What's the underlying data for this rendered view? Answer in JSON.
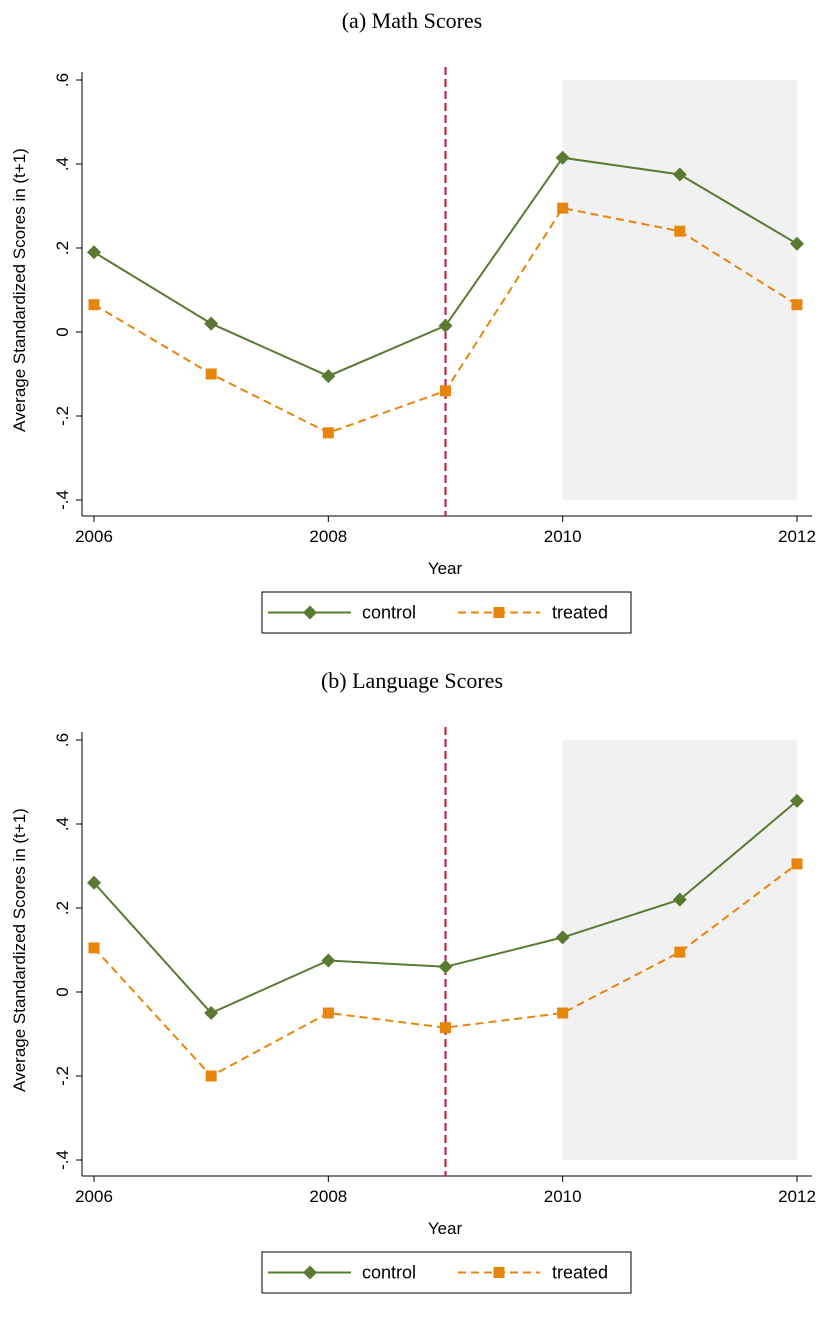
{
  "chart_data": [
    {
      "type": "line",
      "title": "(a) Math Scores",
      "xlabel": "Year",
      "ylabel": "Average Standardized Scores in (t+1)",
      "xlim": [
        2006,
        2012
      ],
      "ylim": [
        -0.4,
        0.6
      ],
      "x_ticks": [
        2006,
        2008,
        2010,
        2012
      ],
      "x_tick_labels": [
        "2006",
        "2008",
        "2010",
        "2012"
      ],
      "y_ticks": [
        -0.4,
        -0.2,
        0,
        0.2,
        0.4,
        0.6
      ],
      "y_tick_labels": [
        "-.4",
        "-.2",
        "0",
        ".2",
        ".4",
        ".6"
      ],
      "x": [
        2006,
        2007,
        2008,
        2009,
        2010,
        2011,
        2012
      ],
      "series": [
        {
          "name": "control",
          "values": [
            0.19,
            0.02,
            -0.105,
            0.015,
            0.415,
            0.375,
            0.21
          ],
          "color": "#5a7a32",
          "marker": "diamond",
          "line": "solid"
        },
        {
          "name": "treated",
          "values": [
            0.065,
            -0.1,
            -0.24,
            -0.14,
            0.295,
            0.24,
            0.065
          ],
          "color": "#e8850c",
          "marker": "square",
          "line": "dashed"
        }
      ],
      "vline": {
        "x": 2009,
        "color": "#cc1133",
        "style": "dashed"
      },
      "shaded_region": {
        "x": [
          2010,
          2012
        ],
        "y": [
          -0.4,
          0.6
        ],
        "color": "#f1f1f1"
      },
      "legend": "bottom",
      "grid": false
    },
    {
      "type": "line",
      "title": "(b) Language Scores",
      "xlabel": "Year",
      "ylabel": "Average Standardized Scores in (t+1)",
      "xlim": [
        2006,
        2012
      ],
      "ylim": [
        -0.4,
        0.6
      ],
      "x_ticks": [
        2006,
        2008,
        2010,
        2012
      ],
      "x_tick_labels": [
        "2006",
        "2008",
        "2010",
        "2012"
      ],
      "y_ticks": [
        -0.4,
        -0.2,
        0,
        0.2,
        0.4,
        0.6
      ],
      "y_tick_labels": [
        "-.4",
        "-.2",
        "0",
        ".2",
        ".4",
        ".6"
      ],
      "x": [
        2006,
        2007,
        2008,
        2009,
        2010,
        2011,
        2012
      ],
      "series": [
        {
          "name": "control",
          "values": [
            0.26,
            -0.05,
            0.075,
            0.06,
            0.13,
            0.22,
            0.455
          ],
          "color": "#5a7a32",
          "marker": "diamond",
          "line": "solid"
        },
        {
          "name": "treated",
          "values": [
            0.105,
            -0.2,
            -0.05,
            -0.085,
            -0.05,
            0.095,
            0.305
          ],
          "color": "#e8850c",
          "marker": "square",
          "line": "dashed"
        }
      ],
      "vline": {
        "x": 2009,
        "color": "#cc1133",
        "style": "dashed"
      },
      "shaded_region": {
        "x": [
          2010,
          2012
        ],
        "y": [
          -0.4,
          0.6
        ],
        "color": "#f1f1f1"
      },
      "legend": "bottom",
      "grid": false
    }
  ]
}
